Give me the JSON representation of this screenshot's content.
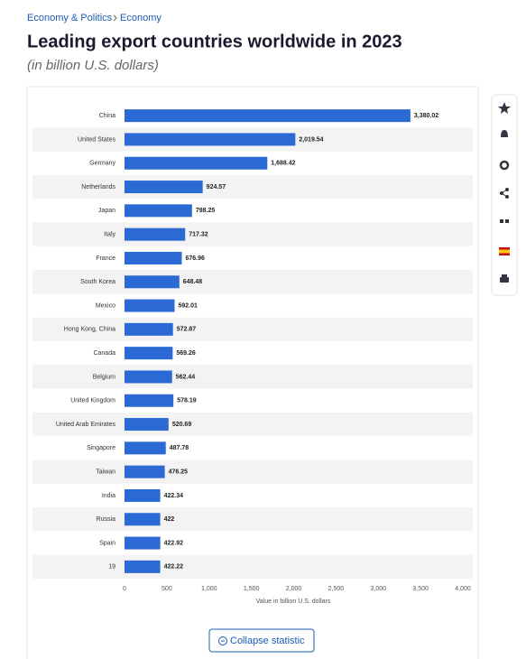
{
  "breadcrumb": [
    "Economy & Politics",
    "Economy"
  ],
  "button": "Collapse statistic",
  "chart_data": {
    "type": "bar",
    "orientation": "horizontal",
    "title": "Leading export countries worldwide in 2023",
    "subtitle": "(in billion U.S. dollars)",
    "x_label": "Value in billion U.S. dollars",
    "categories": [
      "China",
      "United States",
      "Germany",
      "Netherlands",
      "Japan",
      "Italy",
      "France",
      "South Korea",
      "Mexico",
      "Hong Kong, China",
      "Canada",
      "Belgium",
      "United Kingdom",
      "United Arab Emirates",
      "Singapore",
      "Taiwan",
      "India",
      "Russia",
      "Spain",
      "19"
    ],
    "values": [
      3380.02,
      2019.54,
      1688.42,
      924.57,
      798.25,
      717.32,
      676.96,
      648.48,
      592.01,
      572.87,
      569.26,
      562.44,
      578.19,
      520.69,
      487.78,
      476.25,
      422.34,
      422,
      422.92,
      422.22
    ],
    "value_labels": [
      "3,380.02",
      "2,019.54",
      "1,688.42",
      "924.57",
      "798.25",
      "717.32",
      "676.96",
      "648.48",
      "592.01",
      "572.87",
      "569.26",
      "562.44",
      "578.19",
      "520.69",
      "487.78",
      "476.25",
      "422.34",
      "422",
      "422.92",
      "422.22"
    ],
    "color": "#2b6ad4",
    "xlim": [
      0,
      4000
    ],
    "xticks": [
      0,
      500,
      {
        "value": 1000,
        "label": "1,000"
      },
      {
        "value": 1500,
        "label": "1,500"
      },
      {
        "value": 2000,
        "label": "2,000"
      },
      {
        "value": 2500,
        "label": "2,500"
      },
      {
        "value": 3000,
        "label": "3,000"
      },
      {
        "value": 3500,
        "label": "3,500"
      },
      {
        "value": 4000,
        "label": "4,000"
      }
    ],
    "grid": false
  }
}
